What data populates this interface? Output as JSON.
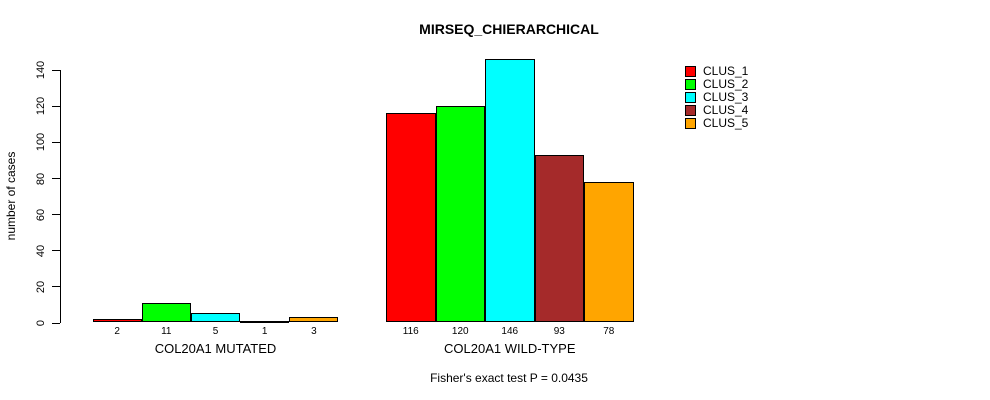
{
  "chart_data": {
    "type": "bar",
    "title": "MIRSEQ_CHIERARCHICAL",
    "ylabel": "number of cases",
    "xlabel": "",
    "subtitle": "Fisher's exact test P = 0.0435",
    "ylim": [
      0,
      146
    ],
    "yticks": [
      0,
      20,
      40,
      60,
      80,
      100,
      120,
      140
    ],
    "grid": false,
    "legend_position": "right",
    "background_color": "#ffffff",
    "axis_color": "#000000",
    "bar_border_color": "#000000",
    "series_colors": [
      "#FF0000",
      "#00FF00",
      "#00FFFF",
      "#A52A2A",
      "#FFA500"
    ],
    "legend": [
      {
        "label": "CLUS_1",
        "color": "#FF0000"
      },
      {
        "label": "CLUS_2",
        "color": "#00FF00"
      },
      {
        "label": "CLUS_3",
        "color": "#00FFFF"
      },
      {
        "label": "CLUS_4",
        "color": "#A52A2A"
      },
      {
        "label": "CLUS_5",
        "color": "#FFA500"
      }
    ],
    "groups": [
      {
        "label": "COL20A1 MUTATED",
        "bar_value_labels": [
          "2",
          "11",
          "5",
          "1",
          "3"
        ],
        "values": [
          2,
          11,
          5,
          1,
          3
        ]
      },
      {
        "label": "COL20A1 WILD-TYPE",
        "bar_value_labels": [
          "116",
          "120",
          "146",
          "93",
          "78"
        ],
        "values": [
          116,
          120,
          146,
          93,
          78
        ]
      }
    ]
  }
}
